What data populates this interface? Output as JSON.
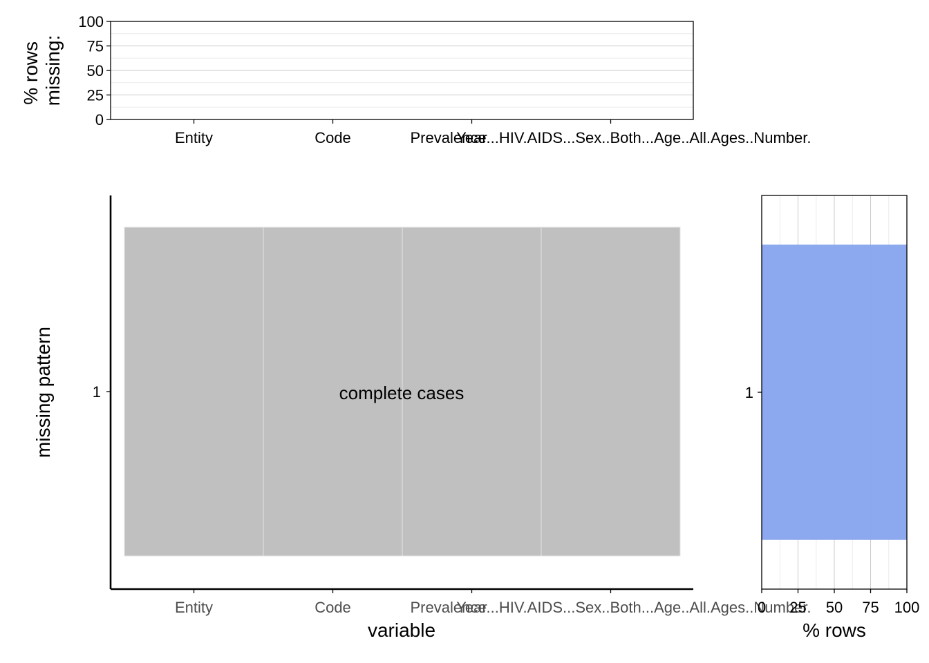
{
  "chart_data": [
    {
      "type": "bar",
      "panel": "top",
      "ylabel": "% rows\nmissing:",
      "ylim": [
        0,
        100
      ],
      "yticks": [
        0,
        25,
        50,
        75,
        100
      ],
      "grid": true,
      "categories": [
        "Entity",
        "Code",
        "Year",
        "Prevalence...HIV.AIDS...Sex..Both...Age..All.Ages..Number."
      ],
      "values": [
        0,
        0,
        0,
        0
      ]
    },
    {
      "type": "heatmap",
      "panel": "main",
      "xlabel": "variable",
      "ylabel": "missing pattern",
      "categories": [
        "Entity",
        "Code",
        "Year",
        "Prevalence...HIV.AIDS...Sex..Both...Age..All.Ages..Number."
      ],
      "x_tick_labels": [
        "Entity",
        "Code",
        "Year",
        "Prevalence...HIV.AIDS...Sex..Both...Age..All.Ages..Number."
      ],
      "patterns": [
        "1"
      ],
      "cells": [
        [
          false,
          false,
          false,
          false
        ]
      ],
      "annotation": "complete cases",
      "colors": {
        "present": "#c0c0c0",
        "cell_border": "#e3e3e3"
      }
    },
    {
      "type": "bar",
      "panel": "right",
      "orientation": "horizontal",
      "xlabel": "% rows",
      "xlim": [
        0,
        100
      ],
      "xticks": [
        0,
        25,
        50,
        75,
        100
      ],
      "grid": true,
      "categories": [
        "1"
      ],
      "values": [
        100
      ],
      "colors": {
        "bar": "#8aa7ef"
      }
    }
  ]
}
